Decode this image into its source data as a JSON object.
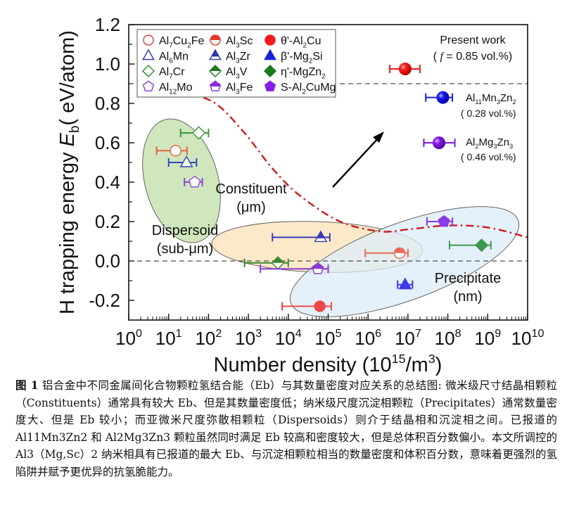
{
  "chart_data": {
    "type": "scatter",
    "xlabel": "Number density (10^15/m^3)",
    "xlabel_parts": {
      "main": "Number density (10",
      "sup1": "15",
      "mid": "/m",
      "sup2": "3",
      "end": ")"
    },
    "ylabel": "H trapping energy Eb( eV/atom)",
    "ylabel_parts": {
      "pre": "H trapping energy  ",
      "sym": "E",
      "sub": "b",
      "post": "( eV/atom)"
    },
    "xscale": "log",
    "xlim": [
      1,
      10000000000.0
    ],
    "ylim": [
      -0.3,
      1.2
    ],
    "x_ticks": [
      {
        "base": "10",
        "exp": "0"
      },
      {
        "base": "10",
        "exp": "1"
      },
      {
        "base": "10",
        "exp": "2"
      },
      {
        "base": "10",
        "exp": "3"
      },
      {
        "base": "10",
        "exp": "4"
      },
      {
        "base": "10",
        "exp": "5"
      },
      {
        "base": "10",
        "exp": "6"
      },
      {
        "base": "10",
        "exp": "7"
      },
      {
        "base": "10",
        "exp": "8"
      },
      {
        "base": "10",
        "exp": "9"
      },
      {
        "base": "10",
        "exp": "10"
      }
    ],
    "y_ticks": [
      "-0.2",
      "0.0",
      "0.2",
      "0.4",
      "0.6",
      "0.8",
      "1.0",
      "1.2"
    ],
    "y_tick_values": [
      -0.2,
      0.0,
      0.2,
      0.4,
      0.6,
      0.8,
      1.0,
      1.2
    ],
    "reference_lines": [
      {
        "type": "horizontal-dashed",
        "y": 0.0
      },
      {
        "type": "horizontal-dashed",
        "y": 0.9
      }
    ],
    "legend": {
      "placement": "top-left",
      "entries": [
        {
          "label": "Al7Cu2Fe",
          "parts": [
            [
              "Al",
              ""
            ],
            [
              "7",
              "sub"
            ],
            [
              "Cu",
              ""
            ],
            [
              "2",
              "sub"
            ],
            [
              "Fe",
              ""
            ]
          ],
          "marker": "circle",
          "fill": "open",
          "color": "#d6403a"
        },
        {
          "label": "Al3Sc",
          "parts": [
            [
              "Al",
              ""
            ],
            [
              "3",
              "sub"
            ],
            [
              "Sc",
              ""
            ]
          ],
          "marker": "circle",
          "fill": "top-half",
          "color": "#e8382e"
        },
        {
          "label": "θ'-Al2Cu",
          "parts": [
            [
              "θ'-Al",
              ""
            ],
            [
              "2",
              "sub"
            ],
            [
              "Cu",
              ""
            ]
          ],
          "marker": "circle",
          "fill": "full",
          "color": "#f21a1a"
        },
        {
          "label": "Al6Mn",
          "parts": [
            [
              "Al",
              ""
            ],
            [
              "6",
              "sub"
            ],
            [
              "Mn",
              ""
            ]
          ],
          "marker": "triangle",
          "fill": "open",
          "color": "#2a35b0"
        },
        {
          "label": "Al3Zr",
          "parts": [
            [
              "Al",
              ""
            ],
            [
              "3",
              "sub"
            ],
            [
              "Zr",
              ""
            ]
          ],
          "marker": "triangle",
          "fill": "top-half",
          "color": "#2a35b0"
        },
        {
          "label": "β'-Mg2Si",
          "parts": [
            [
              "β'-Mg",
              ""
            ],
            [
              "2",
              "sub"
            ],
            [
              "Si",
              ""
            ]
          ],
          "marker": "triangle",
          "fill": "full",
          "color": "#1a22d8"
        },
        {
          "label": "Al7Cr",
          "parts": [
            [
              "Al",
              ""
            ],
            [
              "7",
              "sub"
            ],
            [
              "Cr",
              ""
            ]
          ],
          "marker": "diamond",
          "fill": "open",
          "color": "#2a8a2a"
        },
        {
          "label": "Al3V",
          "parts": [
            [
              "Al",
              ""
            ],
            [
              "3",
              "sub"
            ],
            [
              "V",
              ""
            ]
          ],
          "marker": "diamond",
          "fill": "top-half",
          "color": "#1f7a1f"
        },
        {
          "label": "η'-MgZn2",
          "parts": [
            [
              "η'-MgZn",
              ""
            ],
            [
              "2",
              "sub"
            ]
          ],
          "marker": "diamond",
          "fill": "full",
          "color": "#1a7a1a"
        },
        {
          "label": "Al12Mo",
          "parts": [
            [
              "Al",
              ""
            ],
            [
              "12",
              "sub"
            ],
            [
              "Mo",
              ""
            ]
          ],
          "marker": "pentagon",
          "fill": "open",
          "color": "#8a3ad0"
        },
        {
          "label": "Al3Fe",
          "parts": [
            [
              "Al",
              ""
            ],
            [
              "3",
              "sub"
            ],
            [
              "Fe",
              ""
            ]
          ],
          "marker": "pentagon",
          "fill": "top-half",
          "color": "#8a2ee0"
        },
        {
          "label": "S-Al2CuMg",
          "parts": [
            [
              "S-Al",
              ""
            ],
            [
              "2",
              "sub"
            ],
            [
              "CuMg",
              ""
            ]
          ],
          "marker": "pentagon",
          "fill": "full",
          "color": "#8a1ee8"
        }
      ]
    },
    "series": [
      {
        "name": "Al7Cu2Fe",
        "x": 15,
        "y": 0.56,
        "x_err": [
          5,
          29
        ],
        "color": "#e0653e"
      },
      {
        "name": "Al6Mn",
        "x": 28,
        "y": 0.5,
        "x_err": [
          10,
          50
        ],
        "color": "#2a4ab8"
      },
      {
        "name": "Al7Cr",
        "x": 57,
        "y": 0.65,
        "x_err": [
          20,
          100
        ],
        "color": "#3a9a3a"
      },
      {
        "name": "Al12Mo",
        "x": 45,
        "y": 0.4,
        "x_err": [
          25,
          70
        ],
        "color": "#8a4ad0"
      },
      {
        "name": "Al3Sc",
        "x": 6200000.0,
        "y": 0.04,
        "x_err": [
          850000.0,
          10000000.0
        ],
        "color": "#e86a5a"
      },
      {
        "name": "Al3Zr",
        "x": 65000.0,
        "y": 0.12,
        "x_err": [
          4000,
          110000.0
        ],
        "color": "#3a3ab8"
      },
      {
        "name": "Al3V",
        "x": 5500,
        "y": -0.01,
        "x_err": [
          800,
          10000.0
        ],
        "color": "#3a8a2a"
      },
      {
        "name": "Al3Fe",
        "x": 55000.0,
        "y": -0.04,
        "x_err": [
          2000,
          100000.0
        ],
        "color": "#8a3ad0"
      },
      {
        "name": "θ'-Al2Cu",
        "x": 62000.0,
        "y": -0.23,
        "x_err": [
          7000,
          120000.0
        ],
        "color": "#ea4a4a"
      },
      {
        "name": "β'-Mg2Si",
        "x": 8500000.0,
        "y": -0.12,
        "x_err": [
          5500000.0,
          13000000.0
        ],
        "color": "#3a3ae8"
      },
      {
        "name": "S-Al2CuMg",
        "x": 80000000.0,
        "y": 0.2,
        "x_err": [
          30000000.0,
          130000000.0
        ],
        "color": "#8a3ae8"
      },
      {
        "name": "η'-MgZn2",
        "x": 700000000.0,
        "y": 0.08,
        "x_err": [
          110000000.0,
          1200000000.0
        ],
        "color": "#3a9a4a"
      },
      {
        "name": "Present work Al3(Mg,Sc)2",
        "x": 8500000.0,
        "y": 0.975,
        "x_err": [
          3500000.0,
          20000000.0
        ],
        "color": "#ee1a1a",
        "marker": "sphere"
      },
      {
        "name": "Al11Mn3Zn2",
        "x": 75000000.0,
        "y": 0.83,
        "x_err": [
          28000000.0,
          130000000.0
        ],
        "color": "#1a1ae0",
        "marker": "sphere"
      },
      {
        "name": "Al2Mg3Zn3",
        "x": 60000000.0,
        "y": 0.6,
        "x_err": [
          25000000.0,
          150000000.0
        ],
        "color": "#7a1ae0",
        "marker": "sphere"
      }
    ],
    "boundary_curve": {
      "style": "dash-dot",
      "color": "#cc1a1a",
      "points": [
        [
          30,
          0.85
        ],
        [
          150,
          0.8
        ],
        [
          800,
          0.65
        ],
        [
          4000,
          0.47
        ],
        [
          20000,
          0.33
        ],
        [
          200000.0,
          0.2
        ],
        [
          2000000.0,
          0.15
        ],
        [
          10000000.0,
          0.16
        ],
        [
          100000000.0,
          0.18
        ],
        [
          1000000000.0,
          0.17
        ],
        [
          10000000000.0,
          0.12
        ]
      ]
    },
    "regions": [
      {
        "name": "Constituent",
        "label_line1": "Constituent",
        "label_line2": "(μm)",
        "color": "#c8e2b0"
      },
      {
        "name": "Dispersoid",
        "label_line1": "Dispersoid",
        "label_line2": "(sub-μm)",
        "color": "#fbe5bf"
      },
      {
        "name": "Precipitate",
        "label_line1": "Precipitate",
        "label_line2": "(nm)",
        "color": "#dcecf8"
      }
    ],
    "annotations": {
      "present_work_line1": "Present work",
      "present_work_line2_pre": "( ",
      "present_work_f": "f",
      "present_work_line2_post": " = 0.85 vol.%)",
      "al11_parts": [
        [
          "Al",
          ""
        ],
        [
          "11",
          "sub"
        ],
        [
          "Mn",
          ""
        ],
        [
          "3",
          "sub"
        ],
        [
          "Zn",
          ""
        ],
        [
          "2",
          "sub"
        ]
      ],
      "al11_vol": "( 0.28 vol.%)",
      "al2mg_parts": [
        [
          "Al",
          ""
        ],
        [
          "2",
          "sub"
        ],
        [
          "Mg",
          ""
        ],
        [
          "3",
          "sub"
        ],
        [
          "Zn",
          ""
        ],
        [
          "3",
          "sub"
        ]
      ],
      "al2mg_vol": "( 0.46 vol.%)",
      "arrow": "trend-arrow"
    }
  },
  "caption": {
    "figure_label": "图 1",
    "text": " 铝合金中不同金属间化合物颗粒氢结合能（Eb）与其数量密度对应关系的总结图: 微米级尺寸结晶相颗粒（Constituents）通常具有较大 Eb、但是其数量密度低；纳米级尺度沉淀相颗粒（Precipitates）通常数量密度大、但是 Eb 较小；而亚微米尺度弥散相颗粒（Dispersoids）则介于结晶相和沉淀相之间。已报道的 Al11Mn3Zn2 和 Al2Mg3Zn3 颗粒虽然同时满足 Eb 较高和密度较大，但是总体积百分数偏小。本文所调控的 Al3（Mg,Sc）2 纳米相具有已报道的最大 Eb、与沉淀相颗粒相当的数量密度和体积百分数，意味着更强烈的氢陷阱并赋予更优异的抗氢脆能力。"
  }
}
